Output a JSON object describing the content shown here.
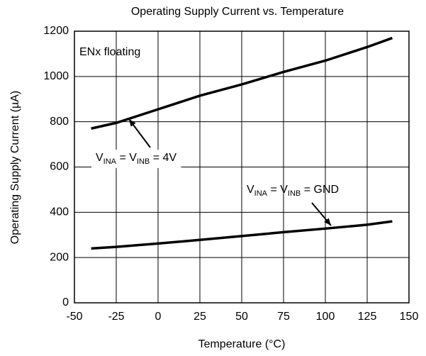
{
  "chart_data": {
    "type": "line",
    "title": "Operating Supply Current vs. Temperature",
    "xlabel": "Temperature (°C)",
    "ylabel": "Operating Supply Current (µA)",
    "x": [
      -40,
      -25,
      0,
      25,
      50,
      75,
      100,
      125,
      140
    ],
    "series": [
      {
        "color": "#000000",
        "values": [
          770,
          795,
          855,
          915,
          965,
          1020,
          1070,
          1130,
          1170
        ]
      },
      {
        "color": "#000000",
        "values": [
          240,
          247,
          262,
          278,
          295,
          312,
          328,
          345,
          360
        ]
      }
    ],
    "xlim": [
      -50,
      150
    ],
    "xticks": [
      -50,
      -25,
      0,
      25,
      50,
      75,
      100,
      125,
      150
    ],
    "ylim": [
      0,
      1200
    ],
    "yticks": [
      0,
      200,
      400,
      600,
      800,
      1000,
      1200
    ],
    "grid": true,
    "annotations": [
      {
        "parts": [
          "ENx floating"
        ]
      },
      {
        "parts": [
          "V",
          "INA",
          " = V",
          "INB",
          " = 4V"
        ]
      },
      {
        "parts": [
          "V",
          "INA",
          " = V",
          "INB",
          " = GND"
        ]
      }
    ]
  }
}
